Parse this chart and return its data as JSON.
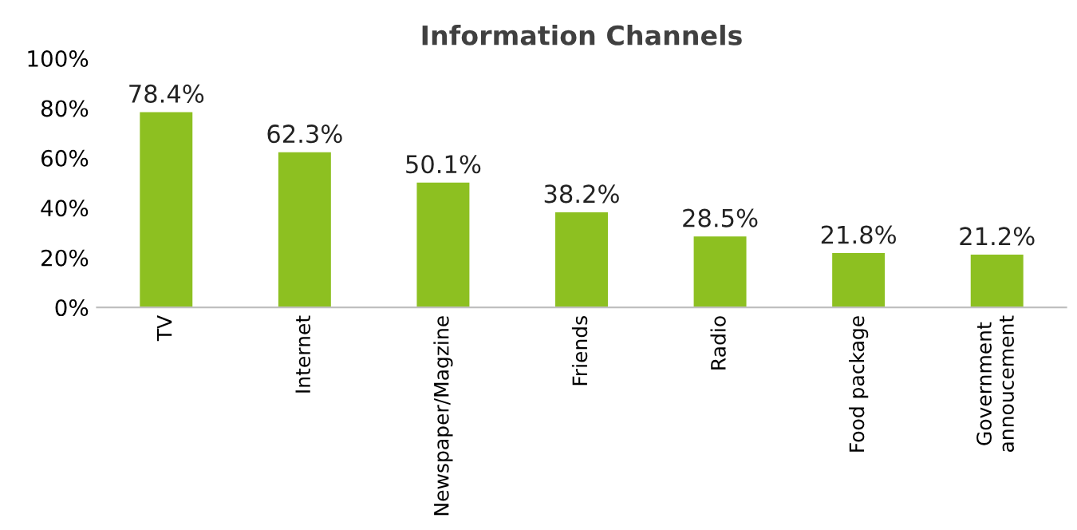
{
  "chart_data": {
    "type": "bar",
    "title": "Information Channels",
    "categories": [
      "TV",
      "Internet",
      "Newspaper/Magzine",
      "Friends",
      "Radio",
      "Food package",
      "Government\nannoucement"
    ],
    "values": [
      78.4,
      62.3,
      50.1,
      38.2,
      28.5,
      21.8,
      21.2
    ],
    "value_labels": [
      "78.4%",
      "62.3%",
      "50.1%",
      "38.2%",
      "28.5%",
      "21.8%",
      "21.2%"
    ],
    "color": "#8dc021",
    "ylim": [
      0,
      100
    ],
    "yticks": [
      {
        "value": 0,
        "label": "0%"
      },
      {
        "value": 20,
        "label": "20%"
      },
      {
        "value": 40,
        "label": "40%"
      },
      {
        "value": 60,
        "label": "60%"
      },
      {
        "value": 80,
        "label": "80%"
      },
      {
        "value": 100,
        "label": "100%"
      }
    ],
    "grid": false,
    "legend": false
  }
}
